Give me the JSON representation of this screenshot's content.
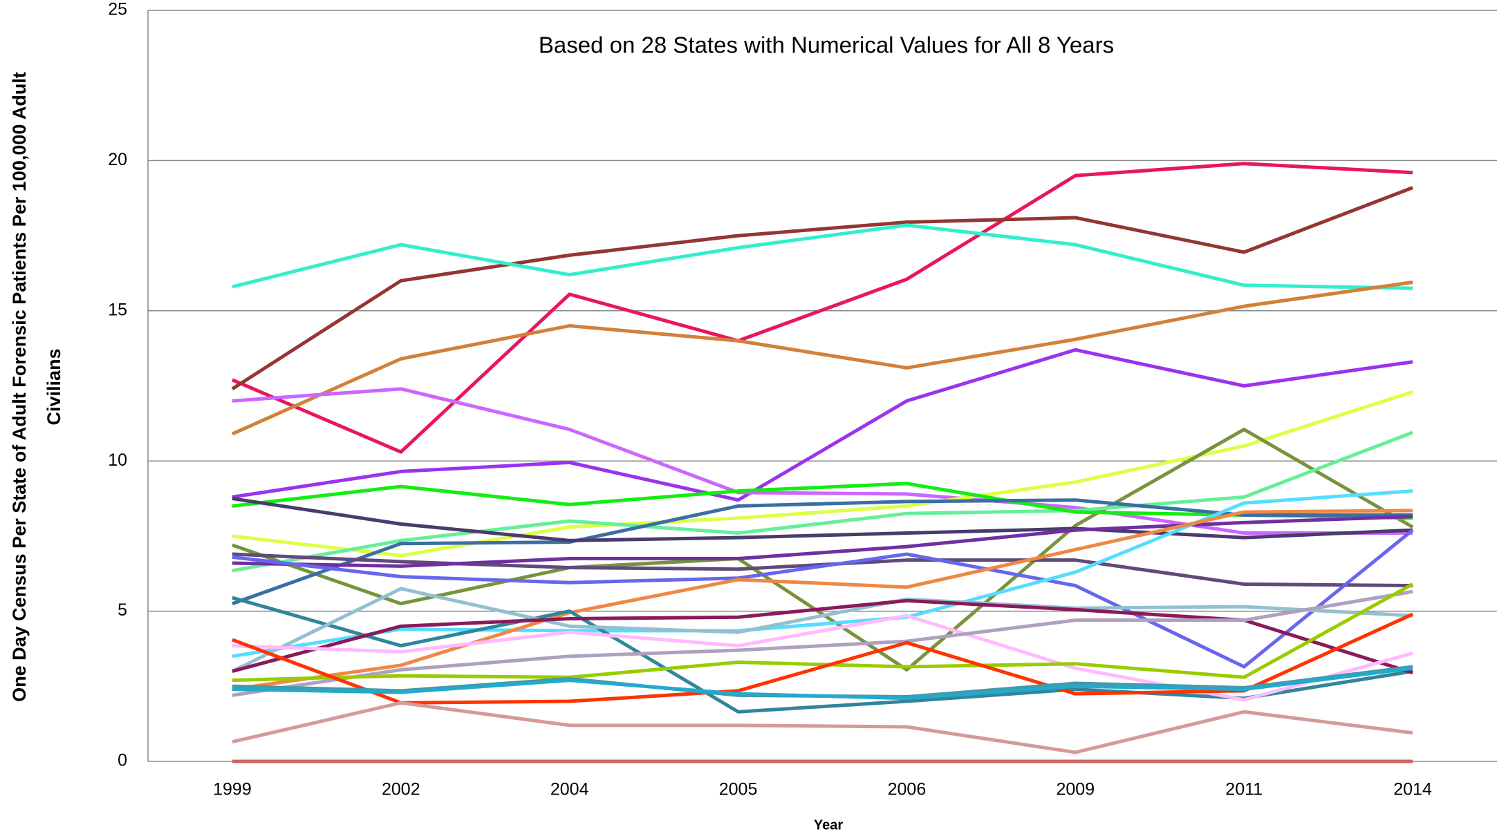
{
  "chart_data": {
    "type": "line",
    "title": "Based on 28 States with Numerical Values  for All 8 Years",
    "y_label": [
      "One Day Census Per State of Adult Forensic Patients  Per 100,000 Adult",
      "Civilians"
    ],
    "x_label": "Year",
    "categories": [
      "1999",
      "2002",
      "2004",
      "2005",
      "2006",
      "2009",
      "2011",
      "2014"
    ],
    "ylim": [
      0,
      25
    ],
    "yticks": [
      0,
      5,
      10,
      15,
      20,
      25
    ],
    "grid": true,
    "series": [
      {
        "color": "#e8175d",
        "values": [
          12.7,
          10.3,
          15.55,
          14.0,
          16.05,
          19.5,
          19.9,
          19.6
        ]
      },
      {
        "color": "#943634",
        "values": [
          12.4,
          16.0,
          16.85,
          17.5,
          17.95,
          18.1,
          16.95,
          19.1
        ]
      },
      {
        "color": "#33eecc",
        "values": [
          15.8,
          17.2,
          16.2,
          17.1,
          17.85,
          17.2,
          15.85,
          15.75
        ]
      },
      {
        "color": "#d2803a",
        "values": [
          10.9,
          13.4,
          14.5,
          14.0,
          13.1,
          14.05,
          15.15,
          15.95
        ]
      },
      {
        "color": "#9b33ee",
        "values": [
          8.8,
          9.65,
          9.95,
          8.7,
          12.0,
          13.7,
          12.5,
          13.3
        ]
      },
      {
        "color": "#cc66ff",
        "values": [
          12.0,
          12.4,
          11.05,
          8.95,
          8.9,
          8.45,
          7.6,
          7.6
        ]
      },
      {
        "color": "#ddff44",
        "values": [
          7.5,
          6.85,
          7.8,
          8.1,
          8.5,
          9.3,
          10.5,
          12.3
        ]
      },
      {
        "color": "#77933c",
        "values": [
          7.2,
          5.25,
          6.45,
          6.75,
          3.05,
          7.85,
          11.05,
          7.8
        ]
      },
      {
        "color": "#66ee99",
        "values": [
          6.35,
          7.35,
          8.0,
          7.6,
          8.25,
          8.35,
          8.8,
          10.95
        ]
      },
      {
        "color": "#11ee11",
        "values": [
          8.5,
          9.15,
          8.55,
          9.0,
          9.25,
          8.3,
          8.2,
          8.1
        ]
      },
      {
        "color": "#3a6ea5",
        "values": [
          5.25,
          7.25,
          7.3,
          8.5,
          8.65,
          8.7,
          8.2,
          8.2
        ]
      },
      {
        "color": "#4a3b6e",
        "values": [
          8.75,
          7.9,
          7.35,
          7.45,
          7.6,
          7.75,
          7.45,
          7.7
        ]
      },
      {
        "color": "#604a7b",
        "values": [
          6.9,
          6.65,
          6.45,
          6.4,
          6.7,
          6.7,
          5.9,
          5.85
        ]
      },
      {
        "color": "#7030a0",
        "values": [
          6.6,
          6.5,
          6.75,
          6.75,
          7.15,
          7.7,
          7.95,
          8.15
        ]
      },
      {
        "color": "#6666ee",
        "values": [
          6.8,
          6.15,
          5.95,
          6.1,
          6.9,
          5.85,
          3.15,
          7.7
        ]
      },
      {
        "color": "#55ddff",
        "values": [
          3.5,
          4.4,
          4.35,
          4.35,
          4.8,
          6.3,
          8.6,
          9.0
        ]
      },
      {
        "color": "#ee8844",
        "values": [
          2.4,
          3.2,
          4.95,
          6.05,
          5.8,
          7.05,
          8.3,
          8.35
        ]
      },
      {
        "color": "#31859c",
        "values": [
          5.45,
          3.85,
          5.0,
          1.65,
          2.0,
          2.4,
          2.1,
          3.0
        ]
      },
      {
        "color": "#93c0d0",
        "values": [
          3.0,
          5.75,
          4.5,
          4.3,
          5.4,
          5.1,
          5.15,
          4.85
        ]
      },
      {
        "color": "#8b1a5a",
        "values": [
          3.0,
          4.5,
          4.75,
          4.8,
          5.35,
          5.05,
          4.7,
          2.95
        ]
      },
      {
        "color": "#ffbbff",
        "values": [
          3.85,
          3.65,
          4.3,
          3.85,
          4.85,
          3.1,
          2.05,
          3.6
        ]
      },
      {
        "color": "#b0a0c0",
        "values": [
          2.2,
          3.05,
          3.5,
          3.7,
          4.0,
          4.7,
          4.7,
          5.65
        ]
      },
      {
        "color": "#99cc00",
        "values": [
          2.7,
          2.85,
          2.8,
          3.3,
          3.15,
          3.25,
          2.8,
          5.9
        ]
      },
      {
        "color": "#ff3300",
        "values": [
          4.05,
          1.95,
          2.0,
          2.35,
          3.95,
          2.25,
          2.35,
          4.9
        ]
      },
      {
        "color": "#4499aa",
        "values": [
          2.5,
          2.35,
          2.75,
          2.2,
          2.15,
          2.6,
          2.45,
          3.15
        ]
      },
      {
        "color": "#22aacc",
        "values": [
          2.4,
          2.3,
          2.7,
          2.25,
          2.1,
          2.5,
          2.4,
          3.1
        ]
      },
      {
        "color": "#d49a9a",
        "values": [
          0.65,
          1.95,
          1.2,
          1.2,
          1.15,
          0.3,
          1.65,
          0.95
        ]
      },
      {
        "color": "#cc6666",
        "values": [
          0,
          0,
          0,
          0,
          0,
          0,
          0,
          0
        ]
      }
    ]
  }
}
